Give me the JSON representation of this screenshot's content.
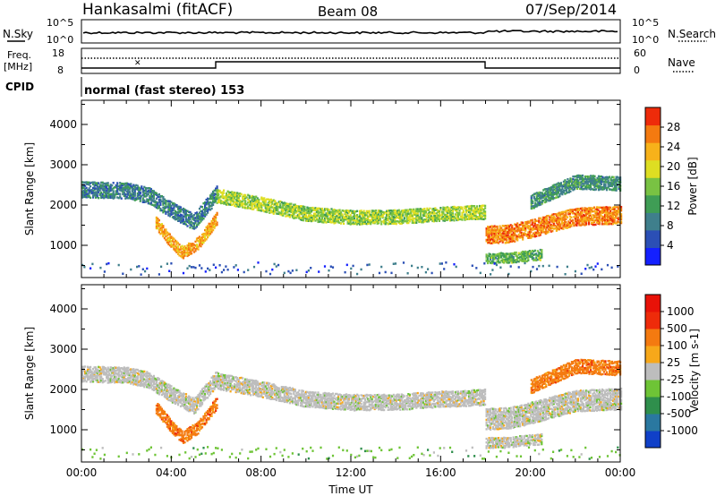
{
  "header": {
    "station": "Hankasalmi (fitACF)",
    "beam": "Beam 08",
    "date": "07/Sep/2014"
  },
  "noise_panel": {
    "left_label": "N.Sky",
    "right_label": "N.Search",
    "left_ticks": [
      "10^5",
      "10^0"
    ],
    "right_ticks": [
      "10^5",
      "10^0"
    ]
  },
  "freq_panel": {
    "left_label_1": "Freq.",
    "left_label_2": "[MHz]",
    "left_ticks": [
      "18",
      "8"
    ],
    "right_label": "Nave",
    "right_ticks": [
      "60",
      "0"
    ]
  },
  "cpid": {
    "label": "CPID",
    "value": "normal (fast stereo) 153"
  },
  "chart_data": [
    {
      "type": "heatmap",
      "name": "power",
      "xlabel": "Time UT",
      "ylabel": "Slant Range [km]",
      "xlim": [
        0,
        24
      ],
      "ylim": [
        200,
        4600
      ],
      "x_ticks": [
        0,
        4,
        8,
        12,
        16,
        20,
        24
      ],
      "x_tick_labels": [
        "00:00",
        "04:00",
        "08:00",
        "12:00",
        "16:00",
        "20:00",
        "00:00"
      ],
      "y_ticks": [
        1000,
        2000,
        3000,
        4000
      ],
      "y_tick_labels": [
        "1000",
        "2000",
        "3000",
        "4000"
      ],
      "colorbar": {
        "label": "Power [dB]",
        "range": [
          0,
          32
        ],
        "tick_values": [
          4,
          8,
          12,
          16,
          20,
          24,
          28
        ],
        "tick_labels": [
          "4",
          "8",
          "12",
          "16",
          "20",
          "24",
          "28"
        ],
        "colors": [
          "#1420ff",
          "#2b4fb5",
          "#3f7f8c",
          "#3f9d55",
          "#79c243",
          "#dede22",
          "#f7b21a",
          "#f47a10",
          "#ee2b0a"
        ]
      },
      "features": [
        {
          "kind": "band",
          "t": [
            0,
            2,
            3,
            4,
            5,
            6
          ],
          "range": [
            2400,
            2380,
            2250,
            1900,
            1600,
            2300
          ],
          "width_km": 180,
          "value_db": 9
        },
        {
          "kind": "band",
          "t": [
            3.3,
            4.0,
            4.5,
            5.2,
            6.0
          ],
          "range": [
            1600,
            1100,
            850,
            1100,
            1700
          ],
          "width_km": 150,
          "value_db": 24
        },
        {
          "kind": "band",
          "t": [
            6,
            8,
            10,
            12,
            14,
            16,
            18
          ],
          "range": [
            2250,
            2050,
            1800,
            1720,
            1730,
            1800,
            1850
          ],
          "width_km": 160,
          "value_db": 17
        },
        {
          "kind": "band",
          "t": [
            18,
            19,
            20,
            21,
            22,
            24
          ],
          "range": [
            1300,
            1320,
            1450,
            1600,
            1750,
            1800
          ],
          "width_km": 220,
          "value_db": 26
        },
        {
          "kind": "band",
          "t": [
            20,
            21.2,
            22,
            24
          ],
          "range": [
            2100,
            2400,
            2600,
            2550
          ],
          "width_km": 160,
          "value_db": 11
        },
        {
          "kind": "band",
          "t": [
            18,
            19,
            20.5
          ],
          "range": [
            700,
            720,
            800
          ],
          "width_km": 120,
          "value_db": 14
        },
        {
          "kind": "ground",
          "t": [
            0,
            24
          ],
          "range": [
            300,
            600
          ],
          "value_db": 6
        }
      ]
    },
    {
      "type": "heatmap",
      "name": "velocity",
      "xlabel": "Time UT",
      "ylabel": "Slant Range [km]",
      "xlim": [
        0,
        24
      ],
      "ylim": [
        200,
        4600
      ],
      "x_ticks": [
        0,
        4,
        8,
        12,
        16,
        20,
        24
      ],
      "x_tick_labels": [
        "00:00",
        "04:00",
        "08:00",
        "12:00",
        "16:00",
        "20:00",
        "00:00"
      ],
      "y_ticks": [
        1000,
        2000,
        3000,
        4000
      ],
      "y_tick_labels": [
        "1000",
        "2000",
        "3000",
        "4000"
      ],
      "colorbar": {
        "label": "Velocity [m s-1]",
        "tick_labels": [
          "1000",
          "500",
          "100",
          "25",
          "-25",
          "-100",
          "-500",
          "-1000"
        ],
        "colors": [
          "#1040c8",
          "#2a78a0",
          "#2f8f4c",
          "#6ec436",
          "#bdbdbd",
          "#f7a81a",
          "#f47a10",
          "#ee2b0a",
          "#e81208"
        ]
      },
      "features": [
        {
          "kind": "band",
          "t": [
            0,
            2,
            3,
            4,
            5,
            6
          ],
          "range": [
            2400,
            2380,
            2250,
            1900,
            1600,
            2300
          ],
          "width_km": 180,
          "value_level": 4
        },
        {
          "kind": "band",
          "t": [
            3.3,
            4.0,
            4.5,
            5.2,
            6.0
          ],
          "range": [
            1600,
            1100,
            850,
            1100,
            1700
          ],
          "width_km": 150,
          "value_level": 6
        },
        {
          "kind": "band",
          "t": [
            6,
            8,
            10,
            12,
            14,
            16,
            18
          ],
          "range": [
            2250,
            2050,
            1800,
            1720,
            1730,
            1800,
            1850
          ],
          "width_km": 200,
          "value_level": 4
        },
        {
          "kind": "band",
          "t": [
            18,
            19,
            20,
            21,
            22,
            24
          ],
          "range": [
            1300,
            1320,
            1450,
            1600,
            1750,
            1800
          ],
          "width_km": 260,
          "value_level": 4
        },
        {
          "kind": "band",
          "t": [
            20,
            21.2,
            22,
            24
          ],
          "range": [
            2100,
            2400,
            2600,
            2550
          ],
          "width_km": 160,
          "value_level": 6
        },
        {
          "kind": "band",
          "t": [
            18,
            19,
            20.5
          ],
          "range": [
            700,
            720,
            800
          ],
          "width_km": 120,
          "value_level": 4
        },
        {
          "kind": "ground",
          "t": [
            0,
            24
          ],
          "range": [
            300,
            600
          ],
          "value_level": 3
        }
      ]
    }
  ]
}
